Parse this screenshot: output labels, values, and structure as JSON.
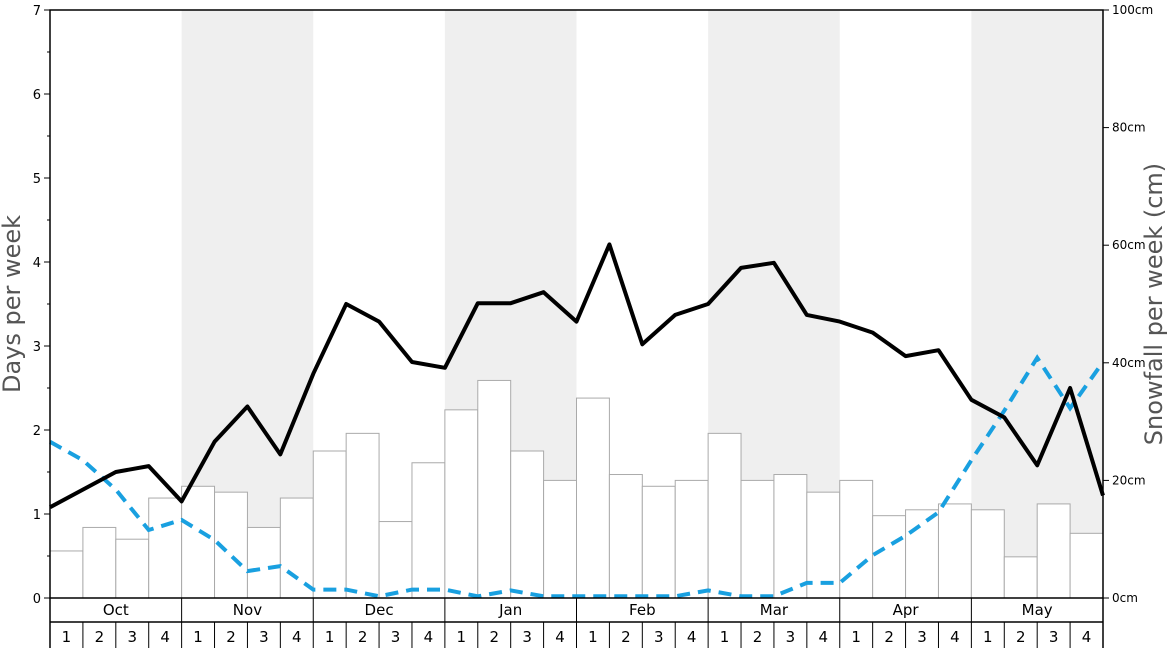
{
  "chart_data": {
    "type": "bar+line",
    "left_axis": {
      "label": "Days per week",
      "range": [
        0,
        7
      ],
      "ticks": [
        "0",
        "1",
        "2",
        "3",
        "4",
        "5",
        "6",
        "7"
      ]
    },
    "right_axis": {
      "label": "Snowfall per week (cm)",
      "range": [
        0,
        100
      ],
      "ticks": [
        "0cm",
        "20cm",
        "40cm",
        "60cm",
        "80cm",
        "100cm"
      ]
    },
    "months": [
      "Oct",
      "Nov",
      "Dec",
      "Jan",
      "Feb",
      "Mar",
      "Apr",
      "May"
    ],
    "weeks": [
      "1",
      "2",
      "3",
      "4"
    ],
    "snowfall_cm": [
      8,
      12,
      10,
      17,
      19,
      18,
      12,
      17,
      25,
      28,
      13,
      23,
      32,
      37,
      25,
      20,
      34,
      21,
      19,
      20,
      28,
      20,
      21,
      18,
      20,
      14,
      15,
      16,
      15,
      7,
      16,
      11
    ],
    "series": [
      {
        "values": [
          1.08,
          1.29,
          1.5,
          1.57,
          1.15,
          1.86,
          2.28,
          1.71,
          2.67,
          3.5,
          3.29,
          2.81,
          2.74,
          3.51,
          3.51,
          3.64,
          3.29,
          4.21,
          3.02,
          3.37,
          3.5,
          3.93,
          3.99,
          3.37,
          3.29,
          3.16,
          2.88,
          2.95,
          2.36,
          2.15,
          1.58,
          2.5,
          1.22
        ]
      },
      {
        "values": [
          1.86,
          1.64,
          1.29,
          0.81,
          0.93,
          0.69,
          0.32,
          0.38,
          0.1,
          0.1,
          0.02,
          0.1,
          0.1,
          0.02,
          0.09,
          0.02,
          0.02,
          0.02,
          0.02,
          0.02,
          0.09,
          0.02,
          0.02,
          0.18,
          0.18,
          0.51,
          0.74,
          1.02,
          1.64,
          2.23,
          2.86,
          2.26,
          2.81
        ]
      }
    ],
    "colors": {
      "shade": "#efefef",
      "bar_fill": "#ffffff",
      "bar_stroke": "#aaaaaa",
      "line_solid": "#000000",
      "line_dashed": "#19a0e0"
    },
    "shaded_months": [
      "Nov",
      "Jan",
      "Mar",
      "May"
    ]
  }
}
